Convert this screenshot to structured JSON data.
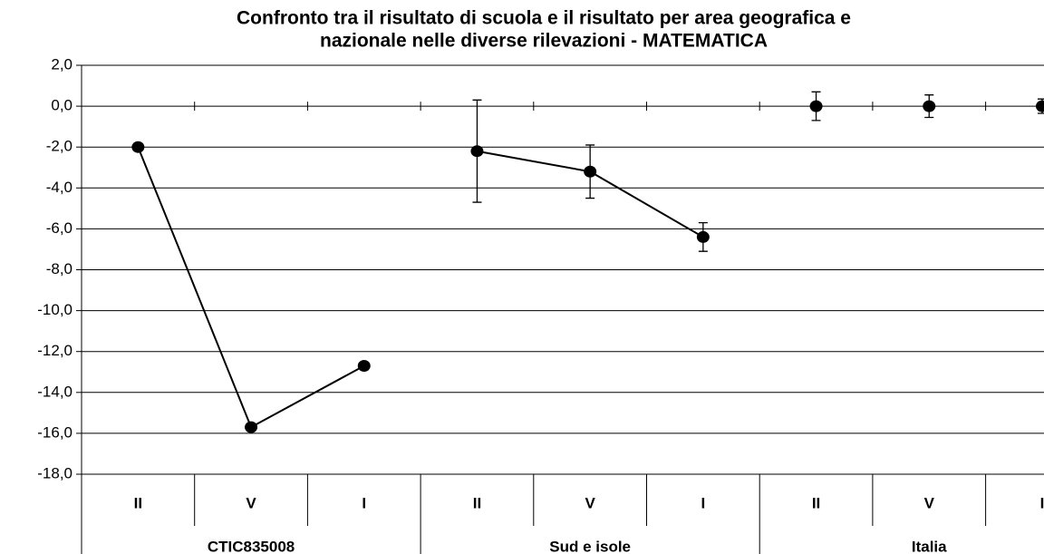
{
  "chart_data": {
    "type": "line",
    "title": [
      "Confronto tra il risultato di scuola e il risultato per area geografica e",
      "nazionale nelle diverse rilevazioni - MATEMATICA"
    ],
    "groups": [
      {
        "label": "CTIC835008",
        "categories": [
          "II",
          "V",
          "I"
        ],
        "values": [
          -2.0,
          -15.7,
          -12.7
        ],
        "errors": [
          null,
          null,
          null
        ],
        "connect": true
      },
      {
        "label": "Sud e isole",
        "categories": [
          "II",
          "V",
          "I"
        ],
        "values": [
          -2.2,
          -3.2,
          -6.4
        ],
        "errors": [
          2.5,
          1.3,
          0.7
        ],
        "connect": true
      },
      {
        "label": "Italia",
        "categories": [
          "II",
          "V",
          "I"
        ],
        "values": [
          0,
          0,
          0
        ],
        "errors": [
          0.7,
          0.55,
          0.35
        ],
        "connect": false
      }
    ],
    "color": "#000000",
    "ylim": [
      -18,
      2
    ],
    "yticks": [
      {
        "value": 2,
        "label": "2,0"
      },
      {
        "value": 0,
        "label": "0,0"
      },
      {
        "value": -2,
        "label": "-2,0"
      },
      {
        "value": -4,
        "label": "-4,0"
      },
      {
        "value": -6,
        "label": "-6,0"
      },
      {
        "value": -8,
        "label": "-8,0"
      },
      {
        "value": -10,
        "label": "-10,0"
      },
      {
        "value": -12,
        "label": "-12,0"
      },
      {
        "value": -14,
        "label": "-14,0"
      },
      {
        "value": -16,
        "label": "-16,0"
      },
      {
        "value": -18,
        "label": "-18,0"
      }
    ],
    "grid": true
  }
}
